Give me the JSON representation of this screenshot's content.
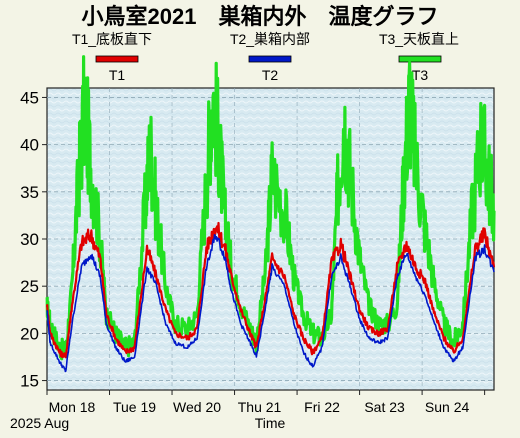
{
  "chart_data": {
    "type": "line",
    "title": "小鳥室2021　巣箱内外　温度グラフ",
    "subtitles": [
      "T1_底板直下",
      "T2_巣箱内部",
      "T3_天板直上"
    ],
    "legend": [
      {
        "label": "T1",
        "color": "#e00000"
      },
      {
        "label": "T2",
        "color": "#0018c8"
      },
      {
        "label": "T3",
        "color": "#22e022"
      }
    ],
    "legend_placement": "top",
    "xlabel": "Time",
    "x_date_label": "2025 Aug",
    "x_ticks": [
      "Mon 18",
      "Tue 19",
      "Wed 20",
      "Thu 21",
      "Fri 22",
      "Sat 23",
      "Sun 24"
    ],
    "xlim_days": [
      0,
      7.15
    ],
    "ylim": [
      14,
      46
    ],
    "y_ticks": [
      15,
      20,
      25,
      30,
      35,
      40,
      45
    ],
    "grid": true,
    "series": [
      {
        "name": "T1",
        "color": "#e00000",
        "x": [
          0,
          0.05,
          0.2,
          0.3,
          0.4,
          0.55,
          0.7,
          0.85,
          0.95,
          1.1,
          1.25,
          1.4,
          1.6,
          1.75,
          1.9,
          2.05,
          2.25,
          2.4,
          2.55,
          2.7,
          2.85,
          2.95,
          3.1,
          3.25,
          3.35,
          3.5,
          3.6,
          3.8,
          3.95,
          4.1,
          4.25,
          4.4,
          4.55,
          4.7,
          4.85,
          5.0,
          5.15,
          5.3,
          5.45,
          5.6,
          5.75,
          5.9,
          6.05,
          6.2,
          6.35,
          6.5,
          6.65,
          6.85,
          7.0,
          7.15
        ],
        "y": [
          23,
          20,
          18,
          17.5,
          23,
          29.5,
          30.5,
          28,
          22,
          19.5,
          18,
          18.5,
          29,
          26,
          22.5,
          20,
          19.5,
          20.5,
          29,
          31.5,
          29,
          26,
          22.5,
          20,
          18.5,
          24,
          28,
          26,
          22,
          19.5,
          18,
          19.5,
          27.5,
          29.5,
          26,
          22.5,
          20.5,
          20,
          20.5,
          27,
          29.5,
          27,
          25.5,
          22,
          19.5,
          18,
          19.5,
          29,
          30.5,
          27
        ]
      },
      {
        "name": "T2",
        "color": "#0018c8",
        "x": [
          0,
          0.05,
          0.2,
          0.3,
          0.4,
          0.55,
          0.7,
          0.85,
          0.95,
          1.1,
          1.25,
          1.4,
          1.6,
          1.75,
          1.9,
          2.05,
          2.25,
          2.4,
          2.55,
          2.7,
          2.85,
          2.95,
          3.1,
          3.25,
          3.35,
          3.5,
          3.6,
          3.8,
          3.95,
          4.1,
          4.25,
          4.4,
          4.55,
          4.7,
          4.85,
          5.0,
          5.15,
          5.3,
          5.45,
          5.6,
          5.75,
          5.9,
          6.05,
          6.2,
          6.35,
          6.5,
          6.65,
          6.85,
          7.0,
          7.15
        ],
        "y": [
          22.5,
          19,
          17,
          16,
          21,
          27,
          28.5,
          26,
          21,
          18.5,
          17,
          17.5,
          27,
          25,
          21,
          19,
          18.5,
          19.5,
          27,
          30.5,
          28,
          24.5,
          21,
          19,
          17.5,
          23,
          27,
          25,
          21,
          18,
          16.5,
          18.5,
          26,
          28,
          25,
          21.5,
          19.5,
          19,
          19.5,
          26,
          28.5,
          26,
          24,
          21,
          18.5,
          17,
          18.5,
          28,
          29,
          26.5
        ]
      },
      {
        "name": "T3",
        "color": "#22e022",
        "x": [
          0,
          0.05,
          0.2,
          0.3,
          0.4,
          0.5,
          0.6,
          0.7,
          0.85,
          0.95,
          1.1,
          1.25,
          1.4,
          1.55,
          1.65,
          1.75,
          1.9,
          2.05,
          2.25,
          2.4,
          2.55,
          2.65,
          2.75,
          2.85,
          2.95,
          3.1,
          3.25,
          3.35,
          3.5,
          3.6,
          3.8,
          3.95,
          4.1,
          4.25,
          4.4,
          4.55,
          4.65,
          4.75,
          4.85,
          5.0,
          5.15,
          5.3,
          5.45,
          5.6,
          5.7,
          5.8,
          5.9,
          6.05,
          6.2,
          6.35,
          6.5,
          6.65,
          6.8,
          6.95,
          7.05,
          7.15
        ],
        "y": [
          23,
          21,
          18.5,
          18,
          25,
          36,
          44,
          38,
          30,
          22,
          20,
          18.5,
          19,
          32,
          40,
          33,
          25,
          21,
          20.5,
          22,
          36,
          46,
          40,
          32,
          27,
          23,
          20.5,
          19,
          27,
          37,
          33,
          26,
          22,
          20,
          19.5,
          22,
          35,
          43,
          37,
          28,
          23,
          21,
          21,
          23,
          36,
          45,
          38,
          31,
          25,
          21,
          19,
          21,
          33,
          41,
          37,
          33
        ]
      }
    ]
  }
}
